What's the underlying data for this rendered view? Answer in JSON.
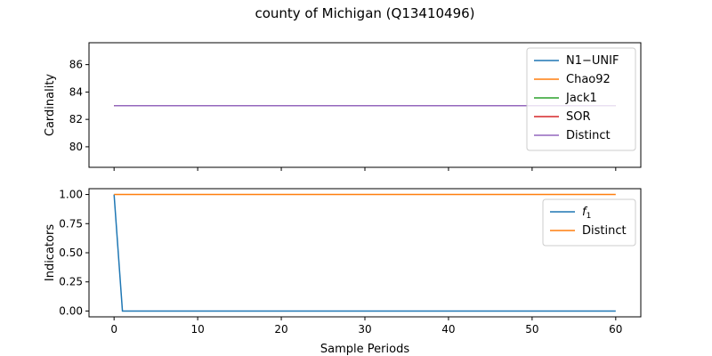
{
  "figure": {
    "title": "county of Michigan (Q13410496)"
  },
  "colors": {
    "blue": "#1f77b4",
    "orange": "#ff7f0e",
    "green": "#2ca02c",
    "red": "#d62728",
    "purple": "#9467bd"
  },
  "chart_data": [
    {
      "type": "line",
      "ylabel": "Cardinality",
      "xlabel": "",
      "xlim": [
        -3,
        63
      ],
      "ylim": [
        78.5,
        87.6
      ],
      "yticks": [
        80,
        82,
        84,
        86
      ],
      "xticks": [
        0,
        10,
        20,
        30,
        40,
        50,
        60
      ],
      "show_xticklabels": false,
      "legend_position": "top-right",
      "series": [
        {
          "name": "N1−UNIF",
          "color": "#1f77b4",
          "x": [
            0,
            60
          ],
          "y": [
            83,
            83
          ]
        },
        {
          "name": "Chao92",
          "color": "#ff7f0e",
          "x": [
            0,
            60
          ],
          "y": [
            83,
            83
          ]
        },
        {
          "name": "Jack1",
          "color": "#2ca02c",
          "x": [
            0,
            60
          ],
          "y": [
            83,
            83
          ]
        },
        {
          "name": "SOR",
          "color": "#d62728",
          "x": [
            0,
            60
          ],
          "y": [
            83,
            83
          ]
        },
        {
          "name": "Distinct",
          "color": "#9467bd",
          "x": [
            0,
            60
          ],
          "y": [
            83,
            83
          ]
        }
      ]
    },
    {
      "type": "line",
      "ylabel": "Indicators",
      "xlabel": "Sample Periods",
      "xlim": [
        -3,
        63
      ],
      "ylim": [
        -0.05,
        1.05
      ],
      "yticks": [
        0.0,
        0.25,
        0.5,
        0.75,
        1.0
      ],
      "ytick_labels": [
        "0.00",
        "0.25",
        "0.50",
        "0.75",
        "1.00"
      ],
      "xticks": [
        0,
        10,
        20,
        30,
        40,
        50,
        60
      ],
      "show_xticklabels": true,
      "legend_position": "top-right",
      "series": [
        {
          "name": "f",
          "name_sub": "1",
          "color": "#1f77b4",
          "x": [
            0,
            1,
            60
          ],
          "y": [
            1,
            0,
            0
          ]
        },
        {
          "name": "Distinct",
          "color": "#ff7f0e",
          "x": [
            0,
            60
          ],
          "y": [
            1,
            1
          ]
        }
      ]
    }
  ]
}
